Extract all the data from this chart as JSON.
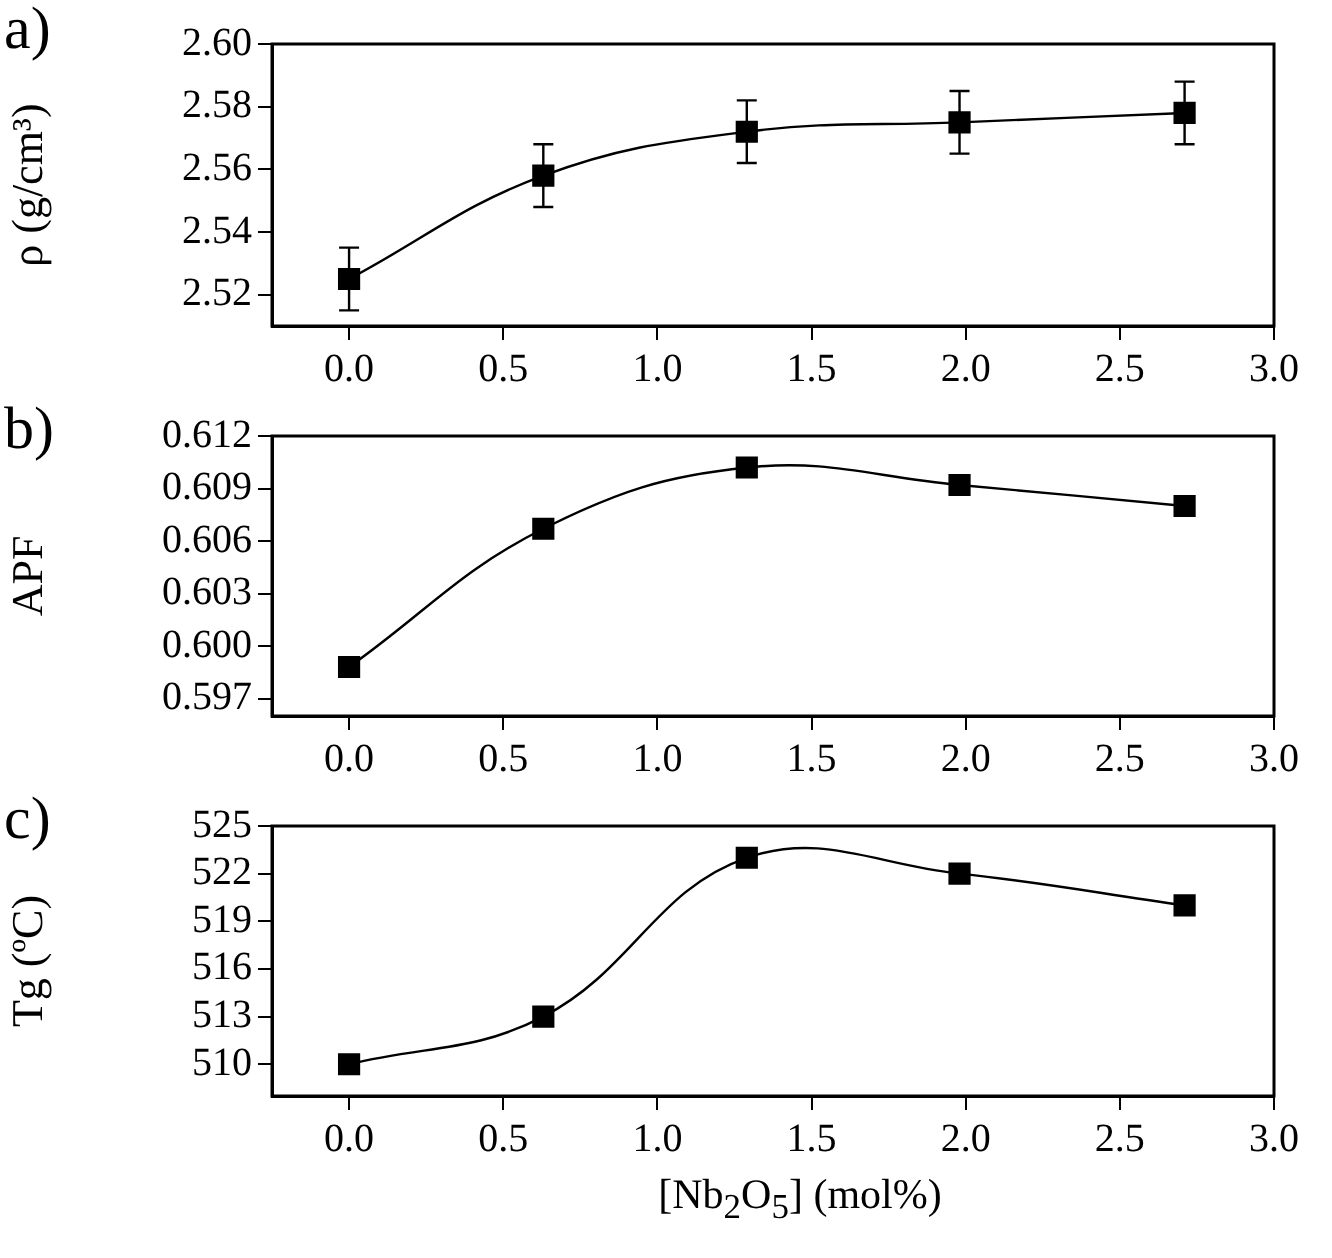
{
  "chart_data": [
    {
      "type": "line",
      "title": "a)",
      "ylabel": "ρ (g/cm³)",
      "x": [
        0,
        0.63,
        1.29,
        1.98,
        2.71
      ],
      "series": [
        {
          "color": "#000000",
          "values": [
            2.525,
            2.558,
            2.572,
            2.575,
            2.578
          ],
          "errors": [
            0.01,
            0.01,
            0.01,
            0.01,
            0.01
          ]
        }
      ],
      "xlim": [
        -0.25,
        3.0
      ],
      "xticks": [
        {
          "value": 0,
          "label": "0.0"
        },
        0.5,
        {
          "value": 1,
          "label": "1.0"
        },
        1.5,
        {
          "value": 2,
          "label": "2.0"
        },
        2.5,
        {
          "value": 3,
          "label": "3.0"
        }
      ],
      "ylim": [
        2.51,
        2.6
      ],
      "yticks": [
        2.52,
        2.54,
        2.56,
        2.58,
        {
          "value": 2.6,
          "label": "2.60"
        }
      ],
      "marker": "square",
      "grid": false,
      "legend": false
    },
    {
      "type": "line",
      "title": "b)",
      "ylabel": "APF",
      "x": [
        0,
        0.63,
        1.29,
        1.98,
        2.71
      ],
      "series": [
        {
          "color": "#000000",
          "values": [
            0.5988,
            0.6067,
            0.6102,
            0.6092,
            0.608
          ]
        }
      ],
      "xlim": [
        -0.25,
        3.0
      ],
      "xticks": [
        {
          "value": 0,
          "label": "0.0"
        },
        0.5,
        {
          "value": 1,
          "label": "1.0"
        },
        1.5,
        {
          "value": 2,
          "label": "2.0"
        },
        2.5,
        {
          "value": 3,
          "label": "3.0"
        }
      ],
      "ylim": [
        0.596,
        0.612
      ],
      "yticks": [
        0.597,
        {
          "value": 0.6,
          "label": "0.600"
        },
        0.603,
        0.606,
        0.609,
        0.612
      ],
      "marker": "square",
      "grid": false,
      "legend": false
    },
    {
      "type": "line",
      "title": "c)",
      "ylabel": "Tg (ºC)",
      "xlabel": "[Nb$_{2}$O$_{5}$] (mol%)",
      "x": [
        0,
        0.63,
        1.29,
        1.98,
        2.71
      ],
      "series": [
        {
          "color": "#000000",
          "values": [
            510,
            513,
            523,
            522,
            520
          ]
        }
      ],
      "xlim": [
        -0.25,
        3.0
      ],
      "xticks": [
        {
          "value": 0,
          "label": "0.0"
        },
        0.5,
        {
          "value": 1,
          "label": "1.0"
        },
        1.5,
        {
          "value": 2,
          "label": "2.0"
        },
        2.5,
        {
          "value": 3,
          "label": "3.0"
        }
      ],
      "ylim": [
        508,
        525
      ],
      "yticks": [
        510,
        513,
        516,
        519,
        522,
        525
      ],
      "marker": "square",
      "grid": false,
      "legend": false
    }
  ]
}
